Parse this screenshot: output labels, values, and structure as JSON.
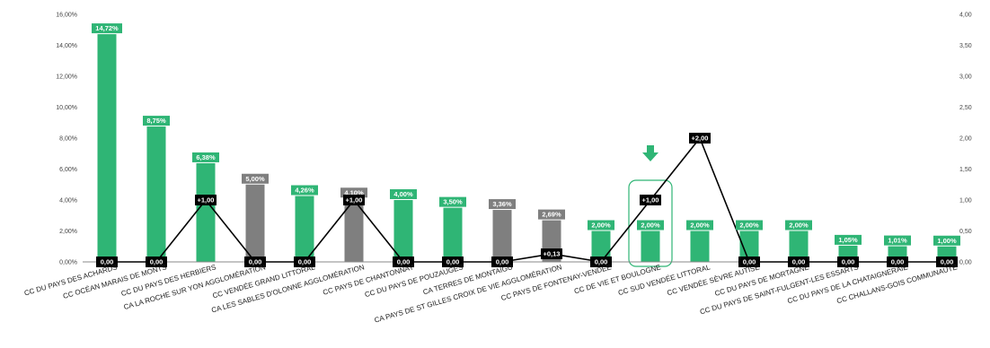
{
  "chart_data": {
    "type": "bar",
    "title": "",
    "xlabel": "",
    "ylabel": "",
    "ylim": [
      0,
      16
    ],
    "y2lim": [
      0,
      4
    ],
    "y_ticks": [
      "0,00%",
      "2,00%",
      "4,00%",
      "6,00%",
      "8,00%",
      "10,00%",
      "12,00%",
      "14,00%",
      "16,00%"
    ],
    "y2_ticks": [
      "0,00",
      "0,50",
      "1,00",
      "1,50",
      "2,00",
      "2,50",
      "3,00",
      "3,50",
      "4,00"
    ],
    "categories": [
      "CC DU PAYS DES ACHARDS",
      "CC OCÉAN MARAIS DE MONTS",
      "CC DU PAYS DES HERBIERS",
      "CA LA ROCHE SUR YON AGGLOMÉRATION",
      "CC  VENDÉE GRAND LITTORAL",
      "CA LES SABLES D'OLONNE AGGLOMÉRATION",
      "CC PAYS DE CHANTONNAY",
      "CC DU PAYS DE POUZAUGES",
      "CA TERRES DE MONTAIGU",
      "CA PAYS DE ST GILLES CROIX DE VIE AGGLOMÉRATION",
      "CC PAYS DE FONTENAY-VENDÉE",
      "CC DE VIE ET BOULOGNE",
      "CC SUD VENDÉE LITTORAL",
      "CC VENDÉE SÈVRE AUTISE",
      "CC DU PAYS DE MORTAGNE",
      "CC DU PAYS DE SAINT-FULGENT-LES ESSARTS",
      "CC DU PAYS DE LA CHATAIGNERAIE",
      "CC CHALLANS-GOIS COMMUNAUTÉ"
    ],
    "series": [
      {
        "values": [
          14.72,
          8.75,
          6.38,
          5.0,
          4.26,
          4.1,
          4.0,
          3.5,
          3.36,
          2.69,
          2.0,
          2.0,
          2.0,
          2.0,
          2.0,
          1.05,
          1.01,
          1.0
        ],
        "labels": [
          "14,72%",
          "8,75%",
          "6,38%",
          "5,00%",
          "4,26%",
          "4,10%",
          "4,00%",
          "3,50%",
          "3,36%",
          "2,69%",
          "2,00%",
          "2,00%",
          "2,00%",
          "2,00%",
          "2,00%",
          "1,05%",
          "1,01%",
          "1,00%"
        ],
        "bar_colors": [
          "green",
          "green",
          "green",
          "gray",
          "green",
          "gray",
          "green",
          "green",
          "gray",
          "gray",
          "green",
          "green",
          "green",
          "green",
          "green",
          "green",
          "green",
          "green"
        ]
      },
      {
        "axis": "secondary",
        "values": [
          0,
          0,
          1,
          0,
          0,
          1,
          0,
          0,
          0,
          0.13,
          0,
          1,
          2,
          0,
          0,
          0,
          0,
          0
        ],
        "labels": [
          "0,00",
          "0,00",
          "+1,00",
          "0,00",
          "0,00",
          "+1,00",
          "0,00",
          "0,00",
          "0,00",
          "+0,13",
          "0,00",
          "+1,00",
          "+2,00",
          "0,00",
          "0,00",
          "0,00",
          "0,00",
          "0,00"
        ]
      }
    ],
    "highlight_index": 11,
    "colors": {
      "green": "#2fb575",
      "gray": "#7f7f7f",
      "line": "#000000",
      "axis": "#888888",
      "highlight": "#2fb575"
    },
    "grid": false,
    "legend": "none"
  }
}
